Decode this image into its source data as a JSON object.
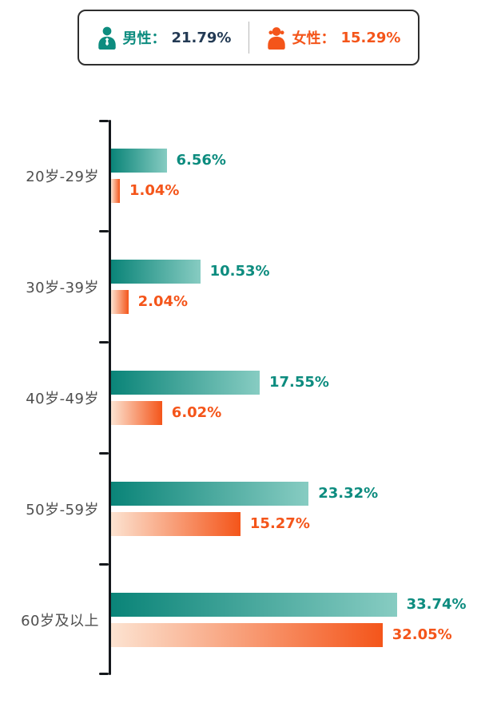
{
  "legend": {
    "male": {
      "label": "男性：",
      "value": "21.79%"
    },
    "female": {
      "label": "女性：",
      "value": "15.29%"
    }
  },
  "colors": {
    "male_teal": "#0D8C7F",
    "male_teal_light": "#87CCC2",
    "female_orange": "#F4551A",
    "female_orange_light": "#FCE3D1",
    "legend_male_value_dark": "#233A54",
    "axis": "#15181C",
    "category_text": "#4F4F4F"
  },
  "chart_data": {
    "type": "bar",
    "orientation": "horizontal",
    "title": "",
    "xlabel": "",
    "ylabel": "",
    "xlim": [
      0,
      36
    ],
    "grid": false,
    "legend_position": "top",
    "categories": [
      "20岁-29岁",
      "30岁-39岁",
      "40岁-49岁",
      "50岁-59岁",
      "60岁及以上"
    ],
    "series": [
      {
        "name": "男性",
        "color": "#0D8C7F",
        "values": [
          6.56,
          10.53,
          17.55,
          23.32,
          33.74
        ],
        "labels": [
          "6.56%",
          "10.53%",
          "17.55%",
          "23.32%",
          "33.74%"
        ]
      },
      {
        "name": "女性",
        "color": "#F4551A",
        "values": [
          1.04,
          2.04,
          6.02,
          15.27,
          32.05
        ],
        "labels": [
          "1.04%",
          "2.04%",
          "6.02%",
          "15.27%",
          "32.05%"
        ]
      }
    ]
  }
}
